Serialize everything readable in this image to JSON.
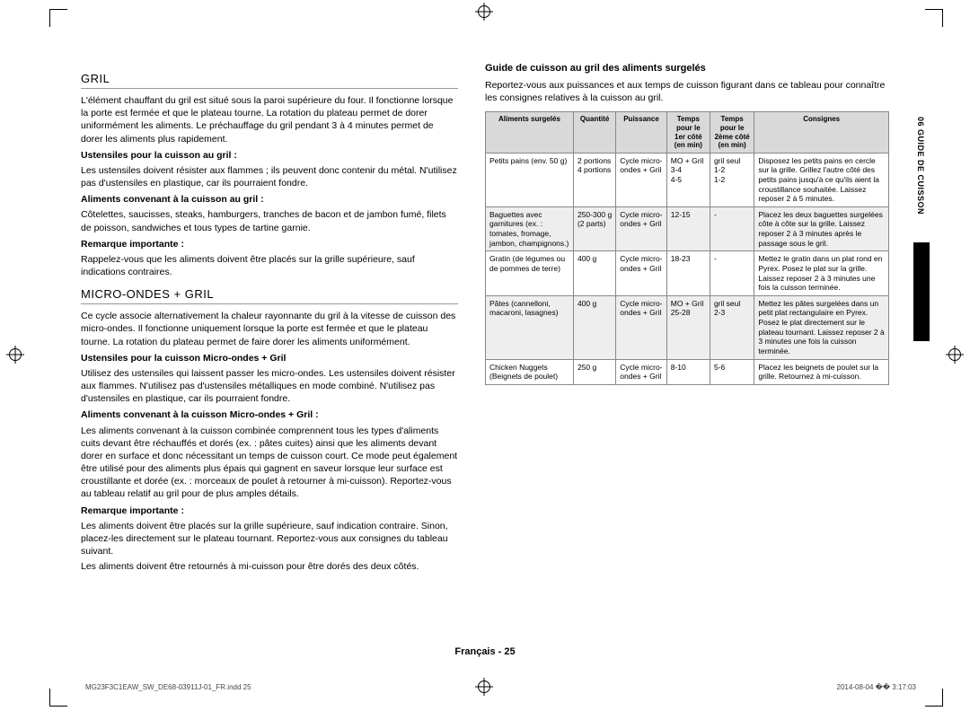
{
  "left": {
    "h1": "GRIL",
    "p1": "L'élément chauffant du gril est situé sous la paroi supérieure du four. Il fonctionne lorsque la porte est fermée et que le plateau tourne. La rotation du plateau permet de dorer uniformément les aliments. Le préchauffage du gril pendant 3 à 4 minutes permet de dorer les aliments plus rapidement.",
    "s1": "Ustensiles pour la cuisson au gril :",
    "p2": "Les ustensiles doivent résister aux flammes ; ils peuvent donc contenir du métal. N'utilisez pas d'ustensiles en plastique, car ils pourraient fondre.",
    "s2": "Aliments convenant à la cuisson au gril :",
    "p3": "Côtelettes, saucisses, steaks, hamburgers, tranches de bacon et de jambon fumé, filets de poisson, sandwiches et tous types de tartine garnie.",
    "s3": "Remarque importante :",
    "p4": "Rappelez-vous que les aliments doivent être placés sur la grille supérieure, sauf indications contraires.",
    "h2": "MICRO-ONDES + GRIL",
    "p5": "Ce cycle associe alternativement la chaleur rayonnante du gril à la vitesse de cuisson des micro-ondes. Il fonctionne uniquement lorsque la porte est fermée et que le plateau tourne. La rotation du plateau permet de faire dorer les aliments uniformément.",
    "s4": "Ustensiles pour la cuisson Micro-ondes + Gril",
    "p6": "Utilisez des ustensiles qui laissent passer les micro-ondes. Les ustensiles doivent résister aux flammes. N'utilisez pas d'ustensiles métalliques en mode combiné. N'utilisez pas d'ustensiles en plastique, car ils pourraient fondre.",
    "s5": "Aliments convenant à la cuisson Micro-ondes + Gril :",
    "p7": "Les aliments convenant à la cuisson combinée comprennent tous les types d'aliments cuits devant être réchauffés et dorés (ex. : pâtes cuites) ainsi que les aliments devant dorer en surface et donc nécessitant un temps de cuisson court. Ce mode peut également être utilisé pour des aliments plus épais qui gagnent en saveur lorsque leur surface est croustillante et dorée (ex. : morceaux de poulet à retourner à mi-cuisson). Reportez-vous au tableau relatif au gril pour de plus amples détails.",
    "s6": "Remarque importante :",
    "p8": "Les aliments doivent être placés sur la grille supérieure, sauf indication contraire. Sinon, placez-les directement sur le plateau tournant. Reportez-vous aux consignes du tableau suivant.",
    "p9": "Les aliments doivent être retournés à mi-cuisson pour être dorés des deux côtés."
  },
  "right": {
    "title": "Guide de cuisson au gril des aliments surgelés",
    "intro": "Reportez-vous aux puissances et aux temps de cuisson figurant dans ce tableau pour connaître les consignes relatives à la cuisson au gril.",
    "th": [
      "Aliments surgelés",
      "Quantité",
      "Puissance",
      "Temps pour le 1er côté (en min)",
      "Temps pour le 2ème côté (en min)",
      "Consignes"
    ],
    "rows": [
      [
        "Petits pains (env. 50 g)",
        "2 portions\n4 portions",
        "Cycle micro-ondes + Gril",
        "MO + Gril\n3-4\n4-5",
        "gril seul\n1-2\n1-2",
        "Disposez les petits pains en cercle sur la grille. Grillez l'autre côté des petits pains jusqu'à ce qu'ils aient la croustillance souhaitée. Laissez reposer 2 à 5 minutes."
      ],
      [
        "Baguettes avec garnitures (ex. : tomates, fromage, jambon, champignons.)",
        "250-300 g (2 parts)",
        "Cycle micro-ondes + Gril",
        "12-15",
        "-",
        "Placez les deux baguettes surgelées côte à côte sur la grille. Laissez reposer 2 à 3 minutes après le passage sous le gril."
      ],
      [
        "Gratin (de légumes ou de pommes de terre)",
        "400 g",
        "Cycle micro-ondes + Gril",
        "18-23",
        "-",
        "Mettez le gratin dans un plat rond en Pyrex. Posez le plat sur la grille. Laissez reposer 2 à 3 minutes une fois la cuisson terminée."
      ],
      [
        "Pâtes (cannelloni, macaroni, lasagnes)",
        "400 g",
        "Cycle micro-ondes + Gril",
        "MO + Gril\n25-28",
        "gril seul\n2-3",
        "Mettez les pâtes surgelées dans un petit plat rectangulaire en Pyrex. Posez le plat directement sur le plateau tournant. Laissez reposer 2 à 3 minutes une fois la cuisson terminée."
      ],
      [
        "Chicken Nuggets (Beignets de poulet)",
        "250 g",
        "Cycle micro-ondes + Gril",
        "8-10",
        "5-6",
        "Placez les beignets de poulet sur la grille. Retournez à mi-cuisson."
      ]
    ]
  },
  "sidetab": "06  GUIDE DE CUISSON",
  "footer": "Français - 25",
  "pfL": "MG23F3C1EAW_SW_DE68-03911J-01_FR.indd   25",
  "pfR": "2014-08-04   �� 3:17:03"
}
